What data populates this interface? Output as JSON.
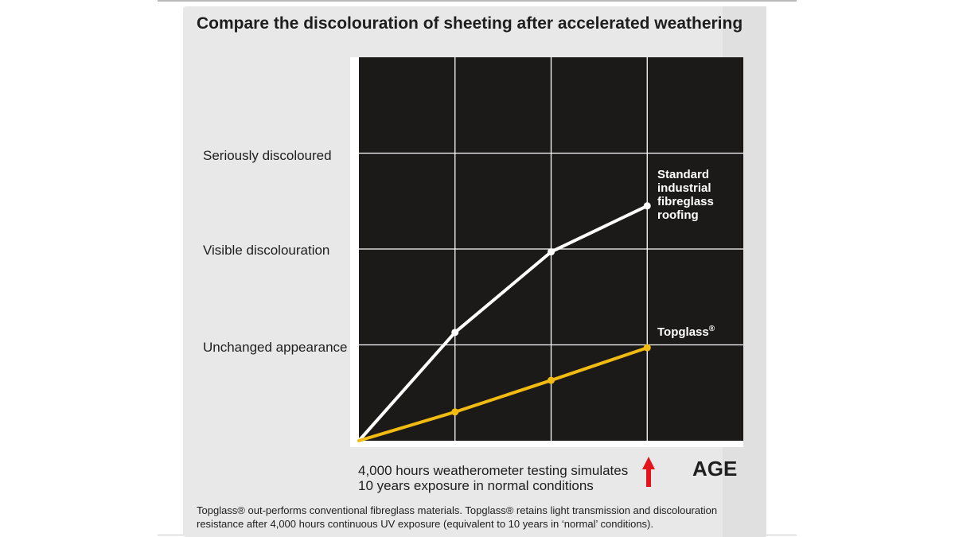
{
  "title": "Compare the discolouration of sheeting after accelerated weathering",
  "y_labels": {
    "high": "Seriously discoloured",
    "mid": "Visible discolouration",
    "low": "Unchanged appearance"
  },
  "series_labels": {
    "standard": [
      "Standard",
      "industrial",
      "fibreglass",
      "roofing"
    ],
    "topglass": "Topglass",
    "topglass_mark": "®"
  },
  "note": {
    "line1": "4,000 hours weatherometer testing simulates",
    "line2": "10 years exposure in normal conditions"
  },
  "age_label": "AGE",
  "footer": {
    "line1": "Topglass® out-performs conventional fibreglass materials. Topglass® retains light transmission and discolouration",
    "line2": "resistance after 4,000 hours continuous UV exposure (equivalent to 10 years in ‘normal’ conditions)."
  },
  "colors": {
    "plot_bg": "#1c1a19",
    "grid": "#ffffff",
    "standard": "#ffffff",
    "topglass": "#f2bb12",
    "arrow": "#e3141b"
  },
  "chart_data": {
    "type": "line",
    "x": [
      0,
      1,
      2,
      3
    ],
    "xlim": [
      0,
      4
    ],
    "ylim": [
      0,
      4
    ],
    "grid": true,
    "xlabel": "AGE",
    "ylabel": "",
    "y_ticks": [
      {
        "value": 3,
        "label": "Seriously discoloured"
      },
      {
        "value": 2,
        "label": "Visible discolouration"
      },
      {
        "value": 1,
        "label": "Unchanged appearance"
      }
    ],
    "series": [
      {
        "name": "Standard industrial fibreglass roofing",
        "values": [
          0,
          1.13,
          1.97,
          2.45
        ]
      },
      {
        "name": "Topglass®",
        "values": [
          0,
          0.3,
          0.63,
          0.97
        ]
      }
    ]
  }
}
